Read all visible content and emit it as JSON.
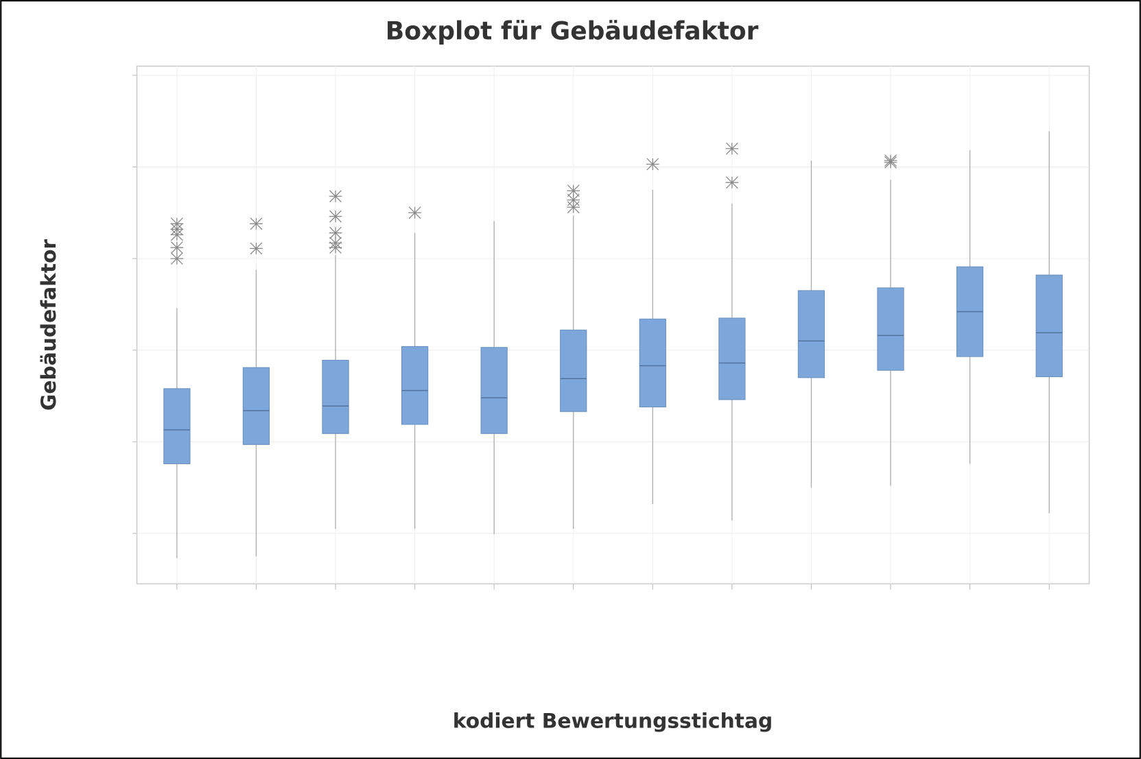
{
  "chart_data": {
    "type": "box",
    "title": "Boxplot für Gebäudefaktor",
    "x_label": "kodiert Bewertungsstichtag",
    "y_label": "Gebäudefaktor",
    "categories": [
      null,
      null,
      null,
      null,
      null,
      null,
      null,
      null,
      null,
      null,
      null,
      null
    ],
    "color": "#7da7db",
    "grid": true,
    "ylim": [
      -0.55,
      5.1
    ],
    "yticks": [
      0,
      1,
      2,
      3,
      4,
      5
    ],
    "boxes": [
      {
        "min": -0.27,
        "q1": 0.76,
        "median": 1.13,
        "q3": 1.58,
        "max": 2.46,
        "outliers": [
          3.38,
          3.32,
          3.26,
          3.12,
          3.0
        ]
      },
      {
        "min": -0.25,
        "q1": 0.97,
        "median": 1.34,
        "q3": 1.81,
        "max": 2.88,
        "outliers": [
          3.38,
          3.11
        ]
      },
      {
        "min": 0.05,
        "q1": 1.09,
        "median": 1.39,
        "q3": 1.89,
        "max": 3.04,
        "outliers": [
          3.68,
          3.46,
          3.28,
          3.17,
          3.12
        ]
      },
      {
        "min": 0.05,
        "q1": 1.19,
        "median": 1.56,
        "q3": 2.04,
        "max": 3.28,
        "outliers": [
          3.5
        ]
      },
      {
        "min": -0.01,
        "q1": 1.09,
        "median": 1.48,
        "q3": 2.03,
        "max": 3.41,
        "outliers": []
      },
      {
        "min": 0.05,
        "q1": 1.33,
        "median": 1.69,
        "q3": 2.22,
        "max": 3.47,
        "outliers": [
          3.74,
          3.64,
          3.56
        ]
      },
      {
        "min": 0.32,
        "q1": 1.38,
        "median": 1.83,
        "q3": 2.34,
        "max": 3.75,
        "outliers": [
          4.03
        ]
      },
      {
        "min": 0.14,
        "q1": 1.46,
        "median": 1.86,
        "q3": 2.35,
        "max": 3.6,
        "outliers": [
          4.2,
          3.83
        ]
      },
      {
        "min": 0.5,
        "q1": 1.7,
        "median": 2.1,
        "q3": 2.65,
        "max": 4.07,
        "outliers": []
      },
      {
        "min": 0.52,
        "q1": 1.78,
        "median": 2.16,
        "q3": 2.68,
        "max": 3.86,
        "outliers": [
          4.07,
          4.05
        ]
      },
      {
        "min": 0.76,
        "q1": 1.93,
        "median": 2.42,
        "q3": 2.91,
        "max": 4.18,
        "outliers": []
      },
      {
        "min": 0.22,
        "q1": 1.71,
        "median": 2.19,
        "q3": 2.82,
        "max": 4.39,
        "outliers": []
      }
    ]
  }
}
